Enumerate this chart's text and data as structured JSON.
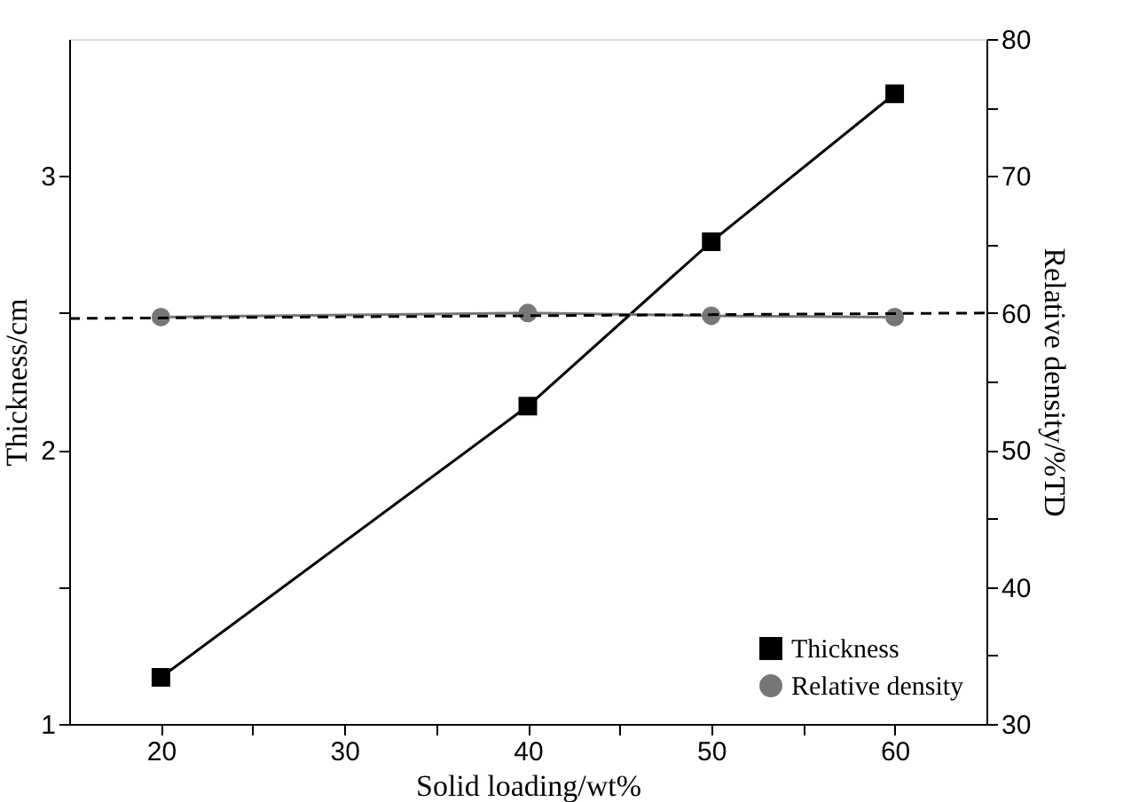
{
  "chart_data": {
    "type": "line",
    "xlabel": "Solid loading/wt%",
    "ylabel": "Thickness/cm",
    "y2label": "Relative density/%TD",
    "x": [
      20,
      40,
      50,
      60
    ],
    "xlim": [
      15,
      65
    ],
    "xticks": [
      20,
      {
        "value": 25,
        "label": null
      },
      30,
      {
        "value": 35,
        "label": null
      },
      40,
      {
        "value": 45,
        "label": null
      },
      50,
      {
        "value": 55,
        "label": null
      },
      60
    ],
    "ylim": [
      1,
      3.5
    ],
    "yticks": [
      1,
      {
        "value": 1.5,
        "label": null
      },
      2,
      {
        "value": 2.5,
        "label": null
      },
      3
    ],
    "y2lim": [
      30,
      80
    ],
    "y2ticks": [
      30,
      {
        "value": 35,
        "label": null
      },
      40,
      {
        "value": 45,
        "label": null
      },
      50,
      {
        "value": 55,
        "label": null
      },
      60,
      {
        "value": 65,
        "label": null
      },
      70,
      {
        "value": 75,
        "label": null
      },
      80
    ],
    "grid": false,
    "legend": "bottom right",
    "series": [
      {
        "name": "Thickness",
        "color": "#000000",
        "values": [
          1.17,
          2.16,
          2.76,
          3.3
        ],
        "marker": "square",
        "line_style": "solid"
      },
      {
        "name": "Relative density",
        "color": "#777777",
        "values": [
          59.7,
          60.0,
          59.8,
          59.7
        ],
        "marker": "circle",
        "line_style": "solid",
        "axis": "y2"
      },
      {
        "type": "line",
        "color": "#000000",
        "x": [
          15,
          65
        ],
        "values": [
          59.6,
          60.0
        ],
        "marker": "none",
        "line_style": "dashed",
        "axis": "y2"
      }
    ]
  }
}
